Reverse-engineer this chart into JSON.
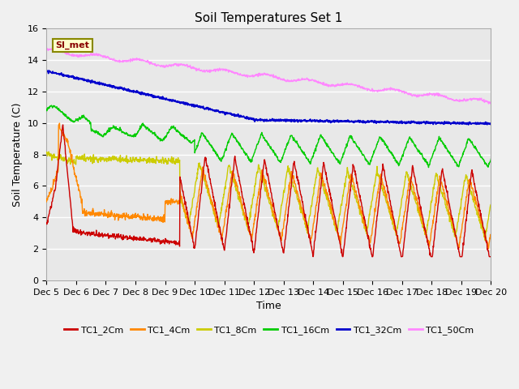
{
  "title": "Soil Temperatures Set 1",
  "xlabel": "Time",
  "ylabel": "Soil Temperature (C)",
  "ylim": [
    0,
    16
  ],
  "yticks": [
    0,
    2,
    4,
    6,
    8,
    10,
    12,
    14,
    16
  ],
  "x_labels": [
    "Dec 5",
    "Dec 6",
    "Dec 7",
    "Dec 8",
    "Dec 9",
    "Dec 10",
    "Dec 11",
    "Dec 12",
    "Dec 13",
    "Dec 14",
    "Dec 15",
    "Dec 16",
    "Dec 17",
    "Dec 18",
    "Dec 19",
    "Dec 20"
  ],
  "series_colors": {
    "TC1_2Cm": "#cc0000",
    "TC1_4Cm": "#ff8800",
    "TC1_8Cm": "#cccc00",
    "TC1_16Cm": "#00cc00",
    "TC1_32Cm": "#0000cc",
    "TC1_50Cm": "#ff88ff"
  },
  "legend_label": "SI_met",
  "background_color": "#e8e8e8",
  "grid_color": "#ffffff",
  "n_points": 1440,
  "title_fontsize": 11,
  "axis_fontsize": 9,
  "tick_fontsize": 8
}
